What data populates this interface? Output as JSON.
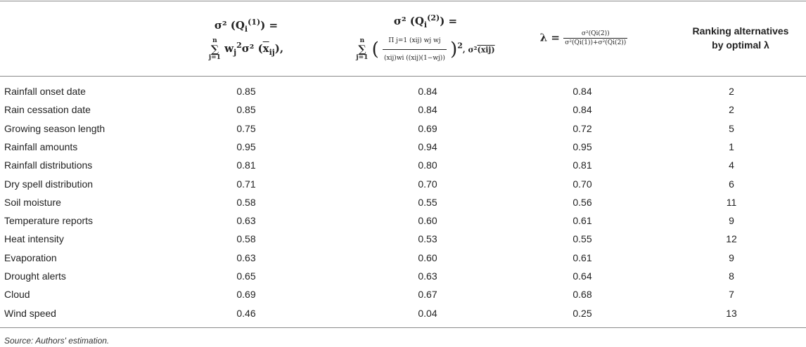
{
  "table": {
    "header": {
      "col1_line1": "σ² (Q",
      "col1_sub": "i",
      "col1_sup": "(1)",
      "col1_tail": ") =",
      "col1_line2": "w",
      "col1_w_sub": "j",
      "col1_w_sup": "2",
      "col1_line2_b": "σ² (",
      "col1_x": "x",
      "col1_x_sub": "ij",
      "col1_line2_c": "),",
      "col2_line1": "σ² (Q",
      "col2_sub": "i",
      "col2_sup": "(2)",
      "col2_tail": ") =",
      "col2_num": "Π",
      "col2_num_rest": "j=1 (xij)",
      "col2_num_tail": "wj wj",
      "col2_den": "(xij)wi ((xij)(1−wj))",
      "col2_after": ", σ²",
      "col2_x": "(xij)",
      "col2_power": "2",
      "col3_lhs": "λ =",
      "col3_num": "σ²(Qi(2))",
      "col3_den": "σ²(Qi(1))+σ²(Qi(2))",
      "sum_top": "n",
      "sum_sig": "∑",
      "sum_bot": "j=1",
      "col4_line1": "Ranking alternatives",
      "col4_line2": "by optimal λ"
    },
    "rows": [
      {
        "name": "Rainfall onset date",
        "v1": "0.85",
        "v2": "0.84",
        "v3": "0.84",
        "rank": "2"
      },
      {
        "name": "Rain cessation date",
        "v1": "0.85",
        "v2": "0.84",
        "v3": "0.84",
        "rank": "2"
      },
      {
        "name": "Growing season length",
        "v1": "0.75",
        "v2": "0.69",
        "v3": "0.72",
        "rank": "5"
      },
      {
        "name": "Rainfall amounts",
        "v1": "0.95",
        "v2": "0.94",
        "v3": "0.95",
        "rank": "1"
      },
      {
        "name": "Rainfall distributions",
        "v1": "0.81",
        "v2": "0.80",
        "v3": "0.81",
        "rank": "4"
      },
      {
        "name": "Dry spell distribution",
        "v1": "0.71",
        "v2": "0.70",
        "v3": "0.70",
        "rank": "6"
      },
      {
        "name": "Soil moisture",
        "v1": "0.58",
        "v2": "0.55",
        "v3": "0.56",
        "rank": "11"
      },
      {
        "name": "Temperature reports",
        "v1": "0.63",
        "v2": "0.60",
        "v3": "0.61",
        "rank": "9"
      },
      {
        "name": "Heat intensity",
        "v1": "0.58",
        "v2": "0.53",
        "v3": "0.55",
        "rank": "12"
      },
      {
        "name": "Evaporation",
        "v1": "0.63",
        "v2": "0.60",
        "v3": "0.61",
        "rank": "9"
      },
      {
        "name": "Drought alerts",
        "v1": "0.65",
        "v2": "0.63",
        "v3": "0.64",
        "rank": "8"
      },
      {
        "name": "Cloud",
        "v1": "0.69",
        "v2": "0.67",
        "v3": "0.68",
        "rank": "7"
      },
      {
        "name": "Wind speed",
        "v1": "0.46",
        "v2": "0.04",
        "v3": "0.25",
        "rank": "13"
      }
    ]
  },
  "footnote": "Source: Authors' estimation."
}
